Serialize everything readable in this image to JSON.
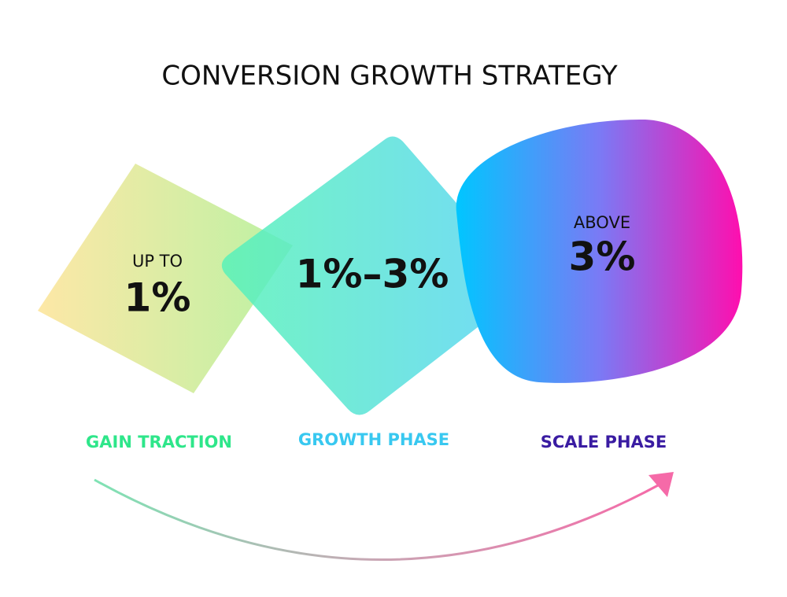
{
  "title": "CONVERSION GROWTH STRATEGY",
  "stages": [
    {
      "prefix": "UP TO",
      "value": "1%",
      "label": "GAIN TRACTION"
    },
    {
      "value": "1%–3%",
      "label": "GROWTH PHASE"
    },
    {
      "prefix": "ABOVE",
      "value": "3%",
      "label": "SCALE PHASE"
    }
  ]
}
